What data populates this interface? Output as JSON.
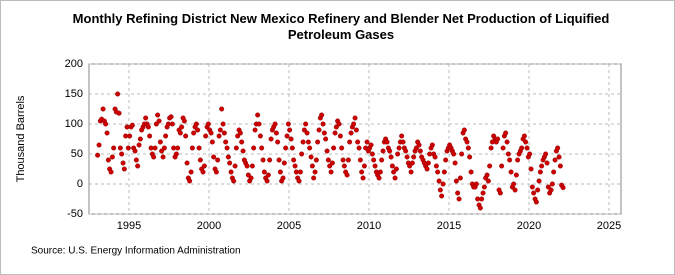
{
  "chart_data": {
    "type": "scatter",
    "title": "Monthly Refining District New Mexico Refinery and Blender Net Production of Liquified Petroleum Gases",
    "y_label": "Thousand Barrels",
    "source": "Source: U.S. Energy Information Administration",
    "color": "#cc0000",
    "xlim": [
      1992.5,
      2025.75
    ],
    "xticks": [
      1995,
      2000,
      2005,
      2010,
      2015,
      2020,
      2025
    ],
    "ylim": [
      -50,
      200
    ],
    "yticks": [
      -50,
      0,
      50,
      100,
      150,
      200
    ],
    "grid": true,
    "x": [
      1993.04,
      1993.13,
      1993.21,
      1993.29,
      1993.38,
      1993.46,
      1993.54,
      1993.63,
      1993.71,
      1993.79,
      1993.88,
      1993.96,
      1994.04,
      1994.13,
      1994.21,
      1994.29,
      1994.38,
      1994.46,
      1994.54,
      1994.63,
      1994.71,
      1994.79,
      1994.88,
      1994.96,
      1995.04,
      1995.13,
      1995.21,
      1995.29,
      1995.38,
      1995.46,
      1995.54,
      1995.63,
      1995.71,
      1995.79,
      1995.88,
      1995.96,
      1996.04,
      1996.13,
      1996.21,
      1996.29,
      1996.38,
      1996.46,
      1996.54,
      1996.63,
      1996.71,
      1996.79,
      1996.88,
      1996.96,
      1997.04,
      1997.13,
      1997.21,
      1997.29,
      1997.38,
      1997.46,
      1997.54,
      1997.63,
      1997.71,
      1997.79,
      1997.88,
      1997.96,
      1998.04,
      1998.13,
      1998.21,
      1998.29,
      1998.38,
      1998.46,
      1998.54,
      1998.63,
      1998.71,
      1998.79,
      1998.88,
      1998.96,
      1999.04,
      1999.13,
      1999.21,
      1999.29,
      1999.38,
      1999.46,
      1999.54,
      1999.63,
      1999.71,
      1999.79,
      1999.88,
      1999.96,
      2000.04,
      2000.13,
      2000.21,
      2000.29,
      2000.38,
      2000.46,
      2000.54,
      2000.63,
      2000.71,
      2000.79,
      2000.88,
      2000.96,
      2001.04,
      2001.13,
      2001.21,
      2001.29,
      2001.38,
      2001.46,
      2001.54,
      2001.63,
      2001.71,
      2001.79,
      2001.88,
      2001.96,
      2002.04,
      2002.13,
      2002.21,
      2002.29,
      2002.38,
      2002.46,
      2002.54,
      2002.63,
      2002.71,
      2002.79,
      2002.88,
      2002.96,
      2003.04,
      2003.13,
      2003.21,
      2003.29,
      2003.38,
      2003.46,
      2003.54,
      2003.63,
      2003.71,
      2003.79,
      2003.88,
      2003.96,
      2004.04,
      2004.13,
      2004.21,
      2004.29,
      2004.38,
      2004.46,
      2004.54,
      2004.63,
      2004.71,
      2004.79,
      2004.88,
      2004.96,
      2005.04,
      2005.13,
      2005.21,
      2005.29,
      2005.38,
      2005.46,
      2005.54,
      2005.63,
      2005.71,
      2005.79,
      2005.88,
      2005.96,
      2006.04,
      2006.13,
      2006.21,
      2006.29,
      2006.38,
      2006.46,
      2006.54,
      2006.63,
      2006.71,
      2006.79,
      2006.88,
      2006.96,
      2007.04,
      2007.13,
      2007.21,
      2007.29,
      2007.38,
      2007.46,
      2007.54,
      2007.63,
      2007.71,
      2007.79,
      2007.88,
      2007.96,
      2008.04,
      2008.13,
      2008.21,
      2008.29,
      2008.38,
      2008.46,
      2008.54,
      2008.63,
      2008.71,
      2008.79,
      2008.88,
      2008.96,
      2009.04,
      2009.13,
      2009.21,
      2009.29,
      2009.38,
      2009.46,
      2009.54,
      2009.63,
      2009.71,
      2009.79,
      2009.88,
      2009.96,
      2010.04,
      2010.13,
      2010.21,
      2010.29,
      2010.38,
      2010.46,
      2010.54,
      2010.63,
      2010.71,
      2010.79,
      2010.88,
      2010.96,
      2011.04,
      2011.13,
      2011.21,
      2011.29,
      2011.38,
      2011.46,
      2011.54,
      2011.63,
      2011.71,
      2011.79,
      2011.88,
      2011.96,
      2012.04,
      2012.13,
      2012.21,
      2012.29,
      2012.38,
      2012.46,
      2012.54,
      2012.63,
      2012.71,
      2012.79,
      2012.88,
      2012.96,
      2013.04,
      2013.13,
      2013.21,
      2013.29,
      2013.38,
      2013.46,
      2013.54,
      2013.63,
      2013.71,
      2013.79,
      2013.88,
      2013.96,
      2014.04,
      2014.13,
      2014.21,
      2014.29,
      2014.38,
      2014.46,
      2014.54,
      2014.63,
      2014.71,
      2014.79,
      2014.88,
      2014.96,
      2015.04,
      2015.13,
      2015.21,
      2015.29,
      2015.38,
      2015.46,
      2015.54,
      2015.63,
      2015.71,
      2015.79,
      2015.88,
      2015.96,
      2016.04,
      2016.13,
      2016.21,
      2016.29,
      2016.38,
      2016.46,
      2016.54,
      2016.63,
      2016.71,
      2016.79,
      2016.88,
      2016.96,
      2017.04,
      2017.13,
      2017.21,
      2017.29,
      2017.38,
      2017.46,
      2017.54,
      2017.63,
      2017.71,
      2017.79,
      2017.88,
      2017.96,
      2018.04,
      2018.13,
      2018.21,
      2018.29,
      2018.38,
      2018.46,
      2018.54,
      2018.63,
      2018.71,
      2018.79,
      2018.88,
      2018.96,
      2019.04,
      2019.13,
      2019.21,
      2019.29,
      2019.38,
      2019.46,
      2019.54,
      2019.63,
      2019.71,
      2019.79,
      2019.88,
      2019.96,
      2020.04,
      2020.13,
      2020.21,
      2020.29,
      2020.38,
      2020.46,
      2020.54,
      2020.63,
      2020.71,
      2020.79,
      2020.88,
      2020.96,
      2021.04,
      2021.13,
      2021.21,
      2021.29,
      2021.38,
      2021.46,
      2021.54,
      2021.63,
      2021.71,
      2021.79,
      2021.88,
      2021.96,
      2022.04,
      2022.13
    ],
    "values": [
      48,
      65,
      105,
      108,
      125,
      105,
      100,
      85,
      40,
      25,
      20,
      45,
      60,
      125,
      120,
      150,
      118,
      60,
      50,
      35,
      25,
      80,
      95,
      60,
      80,
      95,
      98,
      60,
      55,
      40,
      30,
      65,
      75,
      90,
      95,
      100,
      110,
      100,
      95,
      80,
      60,
      50,
      45,
      60,
      100,
      115,
      105,
      70,
      55,
      45,
      60,
      80,
      95,
      100,
      110,
      112,
      100,
      60,
      45,
      50,
      60,
      90,
      85,
      95,
      110,
      105,
      80,
      35,
      10,
      5,
      20,
      60,
      85,
      95,
      100,
      90,
      60,
      40,
      25,
      20,
      30,
      80,
      95,
      100,
      90,
      85,
      70,
      45,
      25,
      20,
      40,
      80,
      90,
      125,
      100,
      85,
      70,
      60,
      45,
      35,
      20,
      10,
      5,
      30,
      60,
      80,
      90,
      85,
      70,
      55,
      40,
      35,
      30,
      15,
      5,
      10,
      30,
      60,
      90,
      100,
      115,
      100,
      80,
      60,
      40,
      20,
      10,
      5,
      15,
      40,
      75,
      90,
      95,
      100,
      85,
      70,
      40,
      20,
      5,
      10,
      35,
      60,
      80,
      100,
      90,
      75,
      60,
      40,
      30,
      20,
      10,
      5,
      20,
      50,
      70,
      90,
      100,
      85,
      70,
      60,
      45,
      30,
      10,
      20,
      40,
      70,
      90,
      110,
      115,
      100,
      85,
      75,
      55,
      40,
      30,
      20,
      35,
      60,
      85,
      95,
      105,
      100,
      80,
      60,
      40,
      30,
      20,
      15,
      40,
      70,
      85,
      95,
      100,
      110,
      90,
      70,
      60,
      40,
      20,
      10,
      30,
      60,
      70,
      55,
      60,
      65,
      50,
      40,
      30,
      20,
      15,
      10,
      20,
      40,
      55,
      70,
      75,
      70,
      60,
      55,
      45,
      30,
      20,
      10,
      25,
      50,
      60,
      70,
      80,
      70,
      60,
      55,
      45,
      35,
      30,
      20,
      35,
      45,
      55,
      60,
      70,
      65,
      55,
      45,
      40,
      35,
      30,
      25,
      35,
      50,
      60,
      65,
      50,
      45,
      30,
      20,
      5,
      -10,
      -20,
      0,
      20,
      40,
      55,
      60,
      65,
      60,
      55,
      50,
      35,
      5,
      -15,
      -25,
      10,
      50,
      85,
      90,
      75,
      70,
      60,
      45,
      20,
      0,
      -5,
      -5,
      0,
      -25,
      -35,
      -40,
      -25,
      -15,
      -5,
      10,
      15,
      5,
      30,
      60,
      70,
      80,
      75,
      70,
      75,
      -10,
      -15,
      30,
      60,
      80,
      85,
      70,
      50,
      40,
      20,
      -5,
      0,
      -10,
      15,
      40,
      50,
      55,
      60,
      75,
      80,
      70,
      60,
      45,
      50,
      25,
      -5,
      -15,
      -25,
      -30,
      -10,
      5,
      20,
      30,
      40,
      45,
      50,
      35,
      -5,
      -15,
      -10,
      0,
      20,
      40,
      55,
      60,
      45,
      30,
      -2,
      -6
    ]
  }
}
